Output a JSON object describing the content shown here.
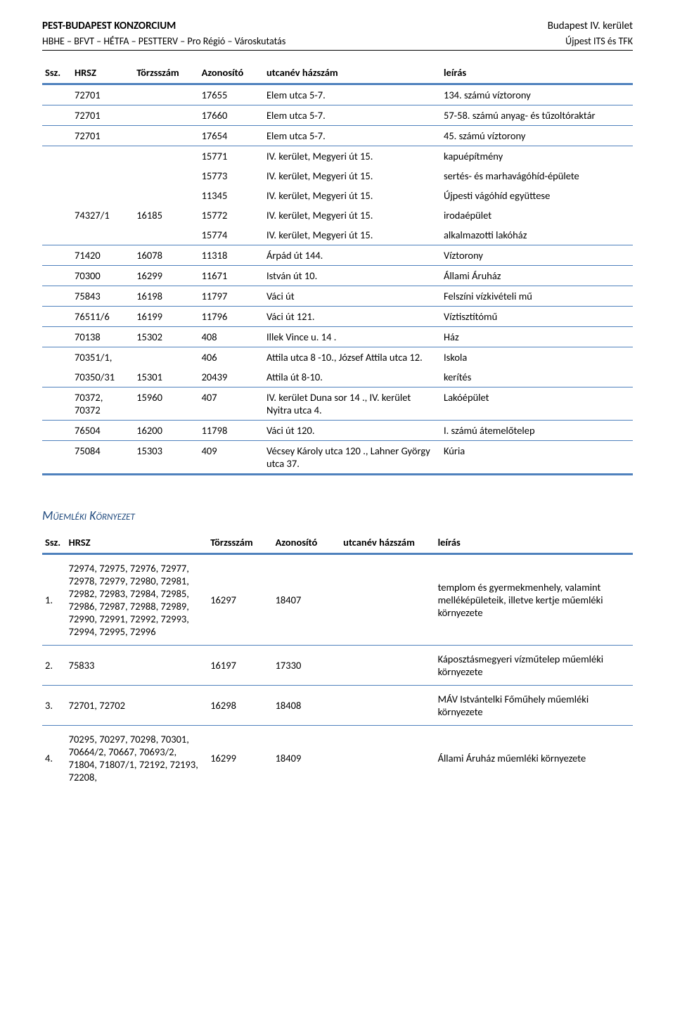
{
  "header": {
    "left1": "PEST-BUDAPEST KONZORCIUM",
    "right1": "Budapest IV. kerület",
    "left2": "HBHE – BFVT – HÉTFA – PESTTERV – Pro Régió – Városkutatás",
    "right2": "Újpest ITS és TFK"
  },
  "table1": {
    "headers": {
      "ssz": "Ssz.",
      "hrsz": "HRSZ",
      "torzsszam": "Törzsszám",
      "azonosito": "Azonosító",
      "utca": "utcanév házszám",
      "leiras": "leírás"
    },
    "rows": [
      {
        "ssz": "",
        "hrsz": "72701",
        "torz": "",
        "azon": "17655",
        "utca": "Elem utca 5-7.",
        "leiras": "134. számú víztorony",
        "sep": true
      },
      {
        "ssz": "",
        "hrsz": "72701",
        "torz": "",
        "azon": "17660",
        "utca": "Elem utca 5-7.",
        "leiras": "57-58. számú anyag- és tűzoltóraktár",
        "sep": true
      },
      {
        "ssz": "",
        "hrsz": "72701",
        "torz": "",
        "azon": "17654",
        "utca": "Elem utca 5-7.",
        "leiras": "45. számú víztorony",
        "sep": true
      },
      {
        "ssz": "",
        "hrsz": "",
        "torz": "",
        "azon": "15771",
        "utca": "IV. kerület, Megyeri út 15.",
        "leiras": "kapuépítmény",
        "sep": false
      },
      {
        "ssz": "",
        "hrsz": "",
        "torz": "",
        "azon": "15773",
        "utca": "IV. kerület, Megyeri út 15.",
        "leiras": "sertés- és marhavágóhíd-épülete",
        "sep": false
      },
      {
        "ssz": "",
        "hrsz": "",
        "torz": "",
        "azon": "11345",
        "utca": "IV. kerület, Megyeri út 15.",
        "leiras": "Újpesti vágóhíd együttese",
        "sep": false
      },
      {
        "ssz": "",
        "hrsz": "74327/1",
        "torz": "16185",
        "azon": "15772",
        "utca": "IV. kerület, Megyeri út 15.",
        "leiras": "irodaépület",
        "sep": false
      },
      {
        "ssz": "",
        "hrsz": "",
        "torz": "",
        "azon": "15774",
        "utca": "IV. kerület, Megyeri út 15.",
        "leiras": "alkalmazotti lakóház",
        "sep": true
      },
      {
        "ssz": "",
        "hrsz": "71420",
        "torz": "16078",
        "azon": "11318",
        "utca": "Árpád út 144.",
        "leiras": "Víztorony",
        "sep": true
      },
      {
        "ssz": "",
        "hrsz": "70300",
        "torz": "16299",
        "azon": "11671",
        "utca": "István út 10.",
        "leiras": "Állami Áruház",
        "sep": true
      },
      {
        "ssz": "",
        "hrsz": "75843",
        "torz": "16198",
        "azon": "11797",
        "utca": "Váci út",
        "leiras": "Felszíni vízkivételi mű",
        "sep": true
      },
      {
        "ssz": "",
        "hrsz": "76511/6",
        "torz": "16199",
        "azon": "11796",
        "utca": "Váci út 121.",
        "leiras": "Víztisztítómű",
        "sep": true
      },
      {
        "ssz": "",
        "hrsz": "70138",
        "torz": "15302",
        "azon": "408",
        "utca": "Illek Vince u. 14 .",
        "leiras": "Ház",
        "sep": true
      },
      {
        "ssz": "",
        "hrsz": "70351/1,",
        "torz": "",
        "azon": "406",
        "utca": "Attila utca 8 -10., József Attila utca 12.",
        "leiras": "Iskola",
        "sep": false
      },
      {
        "ssz": "",
        "hrsz": "70350/31",
        "torz": "15301",
        "azon": "20439",
        "utca": "Attila út 8-10.",
        "leiras": "kerítés",
        "sep": true
      },
      {
        "ssz": "",
        "hrsz": "70372, 70372",
        "torz": "15960",
        "azon": "407",
        "utca": "IV. kerület Duna sor 14 ., IV. kerület Nyitra utca 4.",
        "leiras": "Lakóépület",
        "sep": true
      },
      {
        "ssz": "",
        "hrsz": "76504",
        "torz": "16200",
        "azon": "11798",
        "utca": "Váci út 120.",
        "leiras": "I. számú átemelőtelep",
        "sep": true
      },
      {
        "ssz": "",
        "hrsz": "75084",
        "torz": "15303",
        "azon": "409",
        "utca": "Vécsey Károly utca 120 ., Lahner György utca 37.",
        "leiras": "Kúria",
        "sep": false
      }
    ]
  },
  "section2": {
    "title": "Műemléki Környezet"
  },
  "table2": {
    "headers": {
      "ssz": "Ssz.",
      "hrsz": "HRSZ",
      "torzsszam": "Törzsszám",
      "azonosito": "Azonosító",
      "utca": "utcanév házszám",
      "leiras": "leírás"
    },
    "rows": [
      {
        "ssz": "1.",
        "hrsz": "72974, 72975, 72976, 72977, 72978, 72979, 72980, 72981, 72982, 72983, 72984, 72985, 72986, 72987, 72988, 72989, 72990, 72991, 72992, 72993, 72994, 72995, 72996",
        "torz": "16297",
        "azon": "18407",
        "utca": "",
        "leiras": "templom és gyermekmenhely, valamint melléképületeik, illetve kertje műemléki környezete"
      },
      {
        "ssz": "2.",
        "hrsz": "75833",
        "torz": "16197",
        "azon": "17330",
        "utca": "",
        "leiras": "Káposztásmegyeri vízműtelep műemléki környezete"
      },
      {
        "ssz": "3.",
        "hrsz": "72701, 72702",
        "torz": "16298",
        "azon": "18408",
        "utca": "",
        "leiras": "MÁV Istvántelki Főműhely műemléki környezete"
      },
      {
        "ssz": "4.",
        "hrsz": "70295, 70297, 70298, 70301, 70664/2, 70667, 70693/2, 71804, 71807/1, 72192, 72193, 72208,",
        "torz": "16299",
        "azon": "18409",
        "utca": "",
        "leiras": "Állami Áruház műemléki környezete"
      }
    ]
  }
}
